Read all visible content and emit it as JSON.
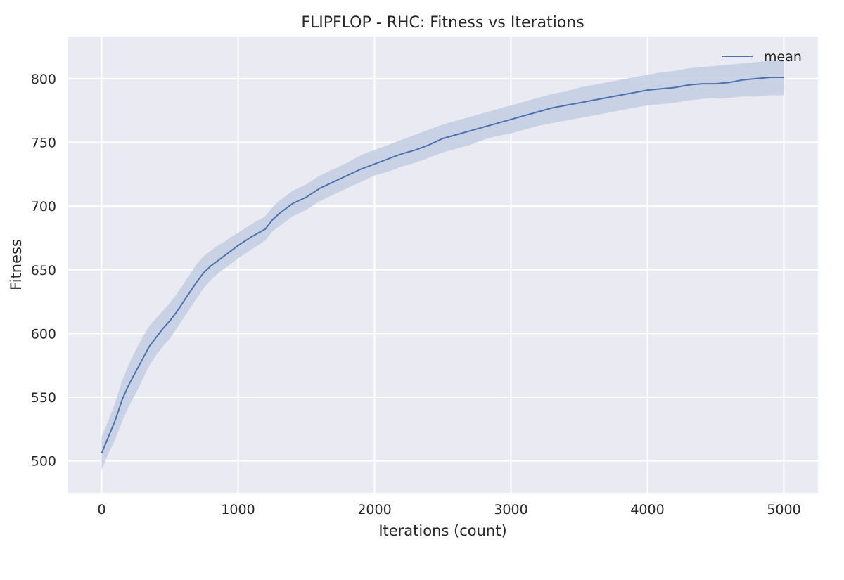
{
  "chart_data": {
    "type": "line",
    "title": "FLIPFLOP - RHC: Fitness vs Iterations",
    "xlabel": "Iterations (count)",
    "ylabel": "Fitness",
    "xlim": [
      -250,
      5250
    ],
    "ylim": [
      475,
      833
    ],
    "x_ticks": [
      0,
      1000,
      2000,
      3000,
      4000,
      5000
    ],
    "y_ticks": [
      500,
      550,
      600,
      650,
      700,
      750,
      800
    ],
    "grid": true,
    "background": "#eaeaf2",
    "legend": {
      "position": "top-right",
      "entries": [
        "mean"
      ]
    },
    "series": [
      {
        "name": "mean",
        "color": "#4c72b0",
        "band_color": "#c5cfe3",
        "x": [
          0,
          50,
          100,
          150,
          200,
          250,
          300,
          350,
          400,
          450,
          500,
          550,
          600,
          650,
          700,
          750,
          800,
          850,
          900,
          950,
          1000,
          1100,
          1200,
          1250,
          1300,
          1400,
          1500,
          1600,
          1700,
          1800,
          1900,
          2000,
          2100,
          2200,
          2300,
          2400,
          2500,
          2600,
          2700,
          2800,
          2900,
          3000,
          3100,
          3200,
          3300,
          3400,
          3500,
          3600,
          3700,
          3800,
          3900,
          4000,
          4100,
          4200,
          4300,
          4400,
          4500,
          4600,
          4700,
          4800,
          4900,
          5000
        ],
        "mean": [
          506,
          519,
          532,
          548,
          560,
          570,
          580,
          590,
          597,
          604,
          610,
          617,
          625,
          633,
          641,
          648,
          653,
          657,
          661,
          665,
          669,
          676,
          682,
          689,
          694,
          702,
          707,
          714,
          719,
          724,
          729,
          733,
          737,
          741,
          744,
          748,
          753,
          756,
          759,
          762,
          765,
          768,
          771,
          774,
          777,
          779,
          781,
          783,
          785,
          787,
          789,
          791,
          792,
          793,
          795,
          796,
          796,
          797,
          799,
          800,
          801,
          801
        ],
        "lower": [
          493,
          506,
          517,
          531,
          543,
          553,
          564,
          575,
          583,
          590,
          596,
          604,
          612,
          620,
          628,
          636,
          642,
          647,
          651,
          655,
          659,
          666,
          673,
          680,
          684,
          692,
          697,
          704,
          709,
          714,
          719,
          724,
          727,
          731,
          734,
          738,
          742,
          745,
          748,
          752,
          755,
          757,
          760,
          763,
          765,
          767,
          769,
          771,
          773,
          775,
          777,
          779,
          780,
          781,
          783,
          784,
          785,
          785,
          786,
          786,
          787,
          787
        ],
        "upper": [
          519,
          532,
          546,
          563,
          576,
          587,
          597,
          606,
          612,
          618,
          624,
          631,
          639,
          647,
          655,
          661,
          665,
          669,
          672,
          676,
          679,
          686,
          692,
          699,
          704,
          712,
          717,
          724,
          729,
          734,
          740,
          744,
          748,
          752,
          756,
          760,
          764,
          767,
          770,
          773,
          776,
          779,
          782,
          785,
          788,
          790,
          793,
          795,
          797,
          799,
          801,
          803,
          805,
          806,
          808,
          809,
          810,
          811,
          812,
          813,
          814,
          814
        ]
      }
    ]
  }
}
